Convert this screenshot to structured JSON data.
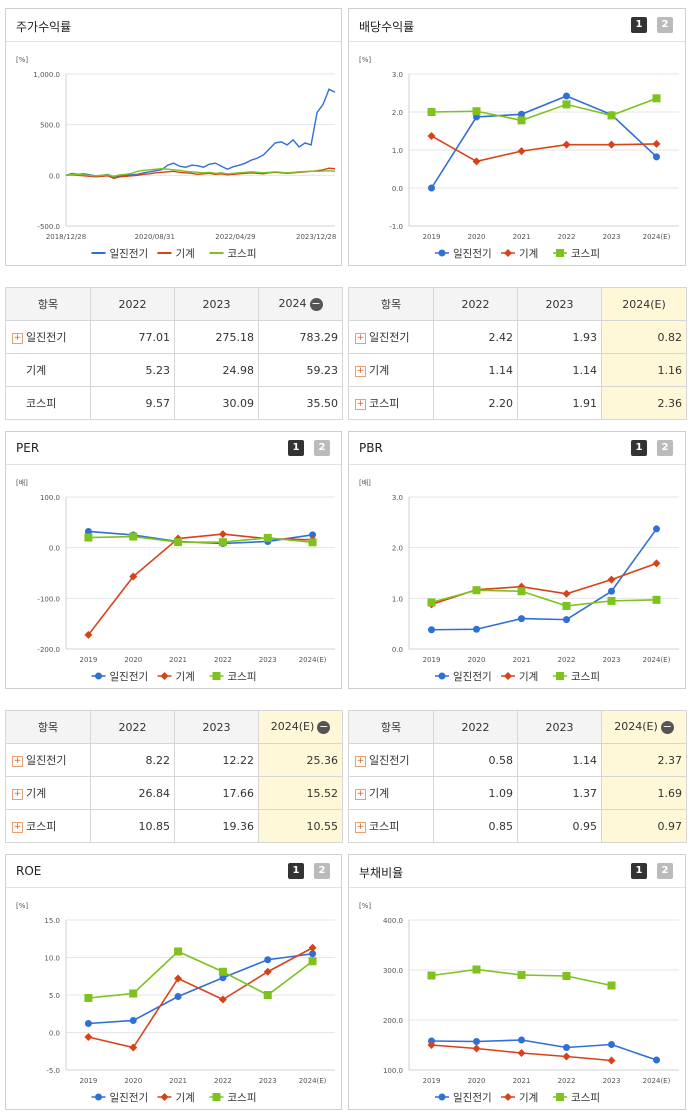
{
  "series_colors": {
    "ilijin": "#2f6fd6",
    "machine": "#d8421a",
    "kospi": "#7dc21d"
  },
  "series_names": [
    "일진전기",
    "기계",
    "코스피"
  ],
  "panels": {
    "stock_return": {
      "title": "주가수익률"
    },
    "dividend": {
      "title": "배당수익률",
      "btn1": "1",
      "btn2": "2"
    },
    "per": {
      "title": "PER",
      "btn1": "1",
      "btn2": "2"
    },
    "pbr": {
      "title": "PBR",
      "btn1": "1",
      "btn2": "2"
    },
    "roe": {
      "title": "ROE",
      "btn1": "1",
      "btn2": "2"
    },
    "debt": {
      "title": "부채비율",
      "btn1": "1",
      "btn2": "2"
    }
  },
  "tables": {
    "stock_return": {
      "headers": [
        "항목",
        "2022",
        "2023",
        "2024"
      ],
      "rows": [
        {
          "label": "일진전기",
          "values": [
            "77.01",
            "275.18",
            "783.29"
          ]
        },
        {
          "label": "기계",
          "values": [
            "5.23",
            "24.98",
            "59.23"
          ]
        },
        {
          "label": "코스피",
          "values": [
            "9.57",
            "30.09",
            "35.50"
          ]
        }
      ]
    },
    "dividend": {
      "headers": [
        "항목",
        "2022",
        "2023",
        "2024(E)"
      ],
      "rows": [
        {
          "label": "일진전기",
          "values": [
            "2.42",
            "1.93",
            "0.82"
          ]
        },
        {
          "label": "기계",
          "values": [
            "1.14",
            "1.14",
            "1.16"
          ]
        },
        {
          "label": "코스피",
          "values": [
            "2.20",
            "1.91",
            "2.36"
          ]
        }
      ]
    },
    "per": {
      "headers": [
        "항목",
        "2022",
        "2023",
        "2024(E)"
      ],
      "rows": [
        {
          "label": "일진전기",
          "values": [
            "8.22",
            "12.22",
            "25.36"
          ]
        },
        {
          "label": "기계",
          "values": [
            "26.84",
            "17.66",
            "15.52"
          ]
        },
        {
          "label": "코스피",
          "values": [
            "10.85",
            "19.36",
            "10.55"
          ]
        }
      ]
    },
    "pbr": {
      "headers": [
        "항목",
        "2022",
        "2023",
        "2024(E)"
      ],
      "rows": [
        {
          "label": "일진전기",
          "values": [
            "0.58",
            "1.14",
            "2.37"
          ]
        },
        {
          "label": "기계",
          "values": [
            "1.09",
            "1.37",
            "1.69"
          ]
        },
        {
          "label": "코스피",
          "values": [
            "0.85",
            "0.95",
            "0.97"
          ]
        }
      ]
    }
  },
  "chart_data": [
    {
      "id": "stock_return",
      "type": "line",
      "ylabel": "[%]",
      "ylim": [
        -500,
        1000
      ],
      "yticks": [
        "1,000.0",
        "500.0",
        "0.0",
        "-500.0"
      ],
      "x_labels": [
        "2018/12/28",
        "2020/08/31",
        "2022/04/29",
        "2023/12/28"
      ],
      "series": [
        {
          "name": "일진전기",
          "values": [
            0,
            18,
            10,
            15,
            5,
            -5,
            0,
            8,
            -15,
            -10,
            0,
            5,
            10,
            25,
            35,
            45,
            55,
            100,
            120,
            90,
            80,
            100,
            95,
            80,
            110,
            120,
            90,
            60,
            85,
            100,
            120,
            150,
            170,
            200,
            260,
            320,
            330,
            300,
            350,
            280,
            320,
            300,
            620,
            700,
            850,
            820
          ]
        },
        {
          "name": "기계",
          "values": [
            0,
            5,
            0,
            -5,
            -10,
            -15,
            -10,
            -5,
            -30,
            -15,
            -10,
            -5,
            0,
            10,
            15,
            25,
            30,
            35,
            40,
            30,
            25,
            20,
            10,
            15,
            20,
            10,
            15,
            5,
            10,
            15,
            20,
            25,
            20,
            15,
            25,
            30,
            25,
            20,
            25,
            30,
            35,
            40,
            45,
            55,
            70,
            65
          ]
        },
        {
          "name": "코스피",
          "values": [
            0,
            10,
            8,
            5,
            0,
            -5,
            0,
            5,
            -10,
            5,
            10,
            20,
            40,
            50,
            55,
            60,
            65,
            60,
            55,
            50,
            40,
            35,
            30,
            25,
            30,
            20,
            25,
            15,
            20,
            25,
            30,
            35,
            30,
            25,
            30,
            35,
            30,
            25,
            30,
            35,
            38,
            40,
            40,
            42,
            45,
            40
          ]
        }
      ]
    },
    {
      "id": "dividend",
      "type": "line",
      "ylabel": "[%]",
      "ylim": [
        -1,
        3
      ],
      "yticks": [
        "3.0",
        "2.0",
        "1.0",
        "0.0",
        "-1.0"
      ],
      "categories": [
        "2019",
        "2020",
        "2021",
        "2022",
        "2023",
        "2024(E)"
      ],
      "series": [
        {
          "name": "일진전기",
          "values": [
            0.0,
            1.87,
            1.94,
            2.42,
            1.93,
            0.82
          ]
        },
        {
          "name": "기계",
          "values": [
            1.37,
            0.7,
            0.97,
            1.14,
            1.14,
            1.16
          ]
        },
        {
          "name": "코스피",
          "values": [
            2.0,
            2.02,
            1.78,
            2.2,
            1.91,
            2.36
          ]
        }
      ]
    },
    {
      "id": "per",
      "type": "line",
      "ylabel": "[배]",
      "ylim": [
        -200,
        100
      ],
      "yticks": [
        "100.0",
        "0.0",
        "-100.0",
        "-200.0"
      ],
      "categories": [
        "2019",
        "2020",
        "2021",
        "2022",
        "2023",
        "2024(E)"
      ],
      "series": [
        {
          "name": "일진전기",
          "values": [
            32,
            25,
            12,
            8.22,
            12.22,
            25.36
          ]
        },
        {
          "name": "기계",
          "values": [
            -172,
            -57,
            18,
            26.84,
            17.66,
            15.52
          ]
        },
        {
          "name": "코스피",
          "values": [
            20,
            22,
            11,
            10.85,
            19.36,
            10.55
          ]
        }
      ]
    },
    {
      "id": "pbr",
      "type": "line",
      "ylabel": "[배]",
      "ylim": [
        0,
        3
      ],
      "yticks": [
        "3.0",
        "2.0",
        "1.0",
        "0.0"
      ],
      "categories": [
        "2019",
        "2020",
        "2021",
        "2022",
        "2023",
        "2024(E)"
      ],
      "series": [
        {
          "name": "일진전기",
          "values": [
            0.38,
            0.39,
            0.6,
            0.58,
            1.14,
            2.37
          ]
        },
        {
          "name": "기계",
          "values": [
            0.88,
            1.17,
            1.23,
            1.09,
            1.37,
            1.69
          ]
        },
        {
          "name": "코스피",
          "values": [
            0.92,
            1.16,
            1.14,
            0.85,
            0.95,
            0.97
          ]
        }
      ]
    },
    {
      "id": "roe",
      "type": "line",
      "ylabel": "[%]",
      "ylim": [
        -5,
        15
      ],
      "yticks": [
        "15.0",
        "10.0",
        "5.0",
        "0.0",
        "-5.0"
      ],
      "categories": [
        "2019",
        "2020",
        "2021",
        "2022",
        "2023",
        "2024(E)"
      ],
      "series": [
        {
          "name": "일진전기",
          "values": [
            1.2,
            1.6,
            4.8,
            7.3,
            9.7,
            10.5
          ]
        },
        {
          "name": "기계",
          "values": [
            -0.6,
            -2.0,
            7.2,
            4.4,
            8.1,
            11.3
          ]
        },
        {
          "name": "코스피",
          "values": [
            4.6,
            5.2,
            10.8,
            8.1,
            5.0,
            9.5
          ]
        }
      ]
    },
    {
      "id": "debt",
      "type": "line",
      "ylabel": "[%]",
      "ylim": [
        100,
        400
      ],
      "yticks": [
        "400.0",
        "300.0",
        "200.0",
        "100.0"
      ],
      "categories": [
        "2019",
        "2020",
        "2021",
        "2022",
        "2023",
        "2024(E)"
      ],
      "series": [
        {
          "name": "일진전기",
          "values": [
            158,
            157,
            160,
            145,
            151,
            120
          ]
        },
        {
          "name": "기계",
          "values": [
            150,
            143,
            134,
            127,
            119,
            null
          ]
        },
        {
          "name": "코스피",
          "values": [
            289,
            301,
            290,
            288,
            269,
            null
          ]
        }
      ]
    }
  ]
}
